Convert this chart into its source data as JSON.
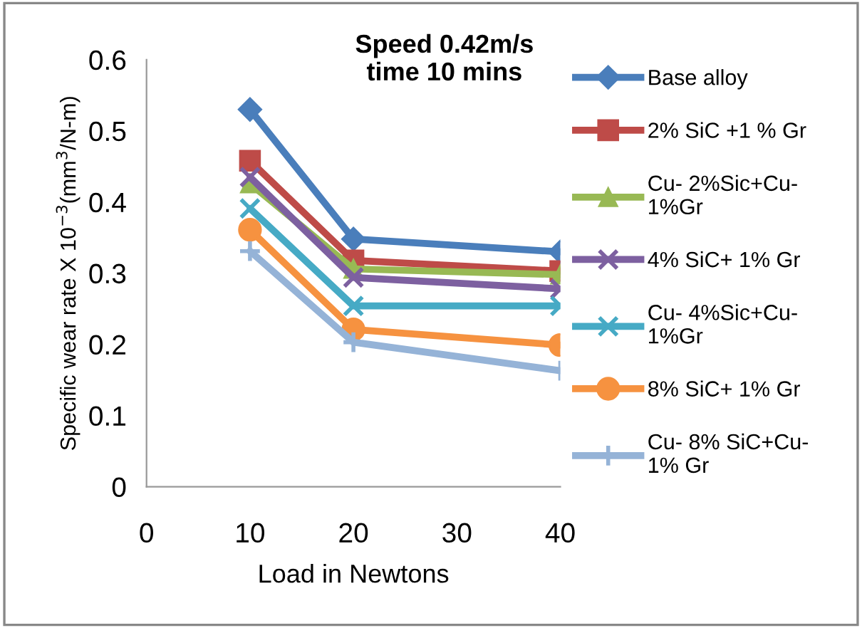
{
  "chart_data": {
    "type": "line",
    "title": "Speed 0.42m/s\ntime 10 mins",
    "xlabel": "Load in Newtons",
    "ylabel": "Specific wear rate X 10$^{−3}$(mm$^{3}$/N-m)",
    "x": [
      10,
      20,
      40
    ],
    "xlim": [
      0,
      40
    ],
    "xticks": [
      0,
      10,
      20,
      30,
      40
    ],
    "ylim": [
      0,
      0.6
    ],
    "yticks": [
      0,
      0.1,
      0.2,
      0.3,
      0.4,
      0.5,
      0.6
    ],
    "grid": false,
    "legend": "right",
    "line_style": "solid",
    "series": [
      {
        "name": "Base alloy",
        "color": "#4a7ebb",
        "marker": "diamond",
        "values": [
          0.53,
          0.348,
          0.33
        ]
      },
      {
        "name": "2% SiC +1 % Gr",
        "color": "#be4b48",
        "marker": "square",
        "values": [
          0.458,
          0.318,
          0.303
        ]
      },
      {
        "name": "Cu- 2%Sic+Cu-\n1%Gr",
        "color": "#98b954",
        "marker": "triangle",
        "values": [
          0.426,
          0.306,
          0.298
        ]
      },
      {
        "name": "4% SiC+ 1% Gr",
        "color": "#7d60a0",
        "marker": "cross",
        "values": [
          0.435,
          0.294,
          0.278
        ]
      },
      {
        "name": "Cu- 4%Sic+Cu-\n1%Gr",
        "color": "#46aac5",
        "marker": "cross",
        "values": [
          0.391,
          0.254,
          0.254
        ]
      },
      {
        "name": "8% SiC+ 1% Gr",
        "color": "#f69240",
        "marker": "circle",
        "values": [
          0.361,
          0.221,
          0.199
        ]
      },
      {
        "name": "Cu- 8% SiC+Cu-\n1% Gr",
        "color": "#95b3d7",
        "marker": "plus",
        "values": [
          0.331,
          0.203,
          0.163
        ]
      }
    ]
  }
}
